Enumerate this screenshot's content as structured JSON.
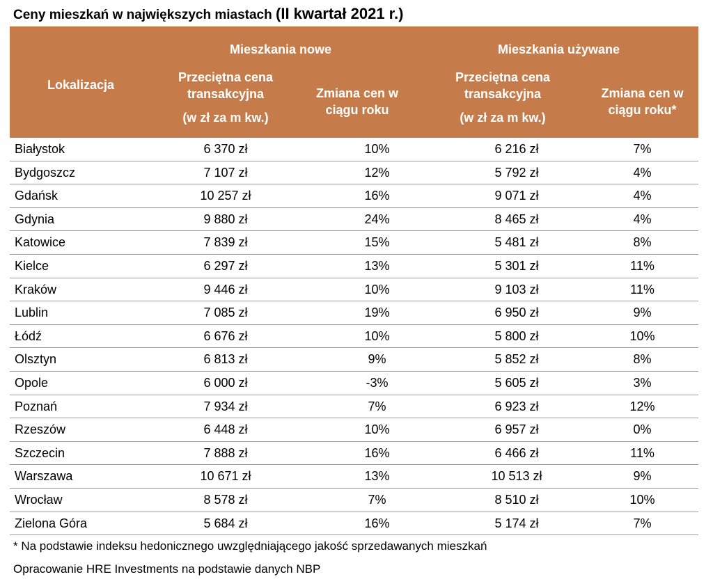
{
  "title": {
    "main": "Ceny mieszkań w największych miastach",
    "period": "(II kwartał 2021 r.)"
  },
  "header": {
    "lokalizacja": "Lokalizacja",
    "new_group": "Mieszkania nowe",
    "used_group": "Mieszkania używane",
    "price_line1": "Przeciętna cena",
    "price_line2": "transakcyjna",
    "price_unit": "(w zł za m kw.)",
    "change_new_line1": "Zmiana cen w",
    "change_new_line2": "ciągu roku",
    "change_used_line1": "Zmiana cen w",
    "change_used_line2": "ciągu roku*"
  },
  "rows": [
    {
      "city": "Białystok",
      "price_new": "6 370 zł",
      "change_new": "10%",
      "price_used": "6 216 zł",
      "change_used": "7%"
    },
    {
      "city": "Bydgoszcz",
      "price_new": "7 107 zł",
      "change_new": "12%",
      "price_used": "5 792 zł",
      "change_used": "4%"
    },
    {
      "city": "Gdańsk",
      "price_new": "10 257 zł",
      "change_new": "16%",
      "price_used": "9 071 zł",
      "change_used": "4%"
    },
    {
      "city": "Gdynia",
      "price_new": "9 880 zł",
      "change_new": "24%",
      "price_used": "8 465 zł",
      "change_used": "4%"
    },
    {
      "city": "Katowice",
      "price_new": "7 839 zł",
      "change_new": "15%",
      "price_used": "5 481 zł",
      "change_used": "8%"
    },
    {
      "city": "Kielce",
      "price_new": "6 297 zł",
      "change_new": "13%",
      "price_used": "5 301 zł",
      "change_used": "11%"
    },
    {
      "city": "Kraków",
      "price_new": "9 446 zł",
      "change_new": "10%",
      "price_used": "9 103 zł",
      "change_used": "11%"
    },
    {
      "city": "Lublin",
      "price_new": "7 085 zł",
      "change_new": "19%",
      "price_used": "6 950 zł",
      "change_used": "9%"
    },
    {
      "city": "Łódź",
      "price_new": "6 676 zł",
      "change_new": "10%",
      "price_used": "5 800 zł",
      "change_used": "10%"
    },
    {
      "city": "Olsztyn",
      "price_new": "6 813 zł",
      "change_new": "9%",
      "price_used": "5 852 zł",
      "change_used": "8%"
    },
    {
      "city": "Opole",
      "price_new": "6 000 zł",
      "change_new": "-3%",
      "price_used": "5 605 zł",
      "change_used": "3%"
    },
    {
      "city": "Poznań",
      "price_new": "7 934 zł",
      "change_new": "7%",
      "price_used": "6 923 zł",
      "change_used": "12%"
    },
    {
      "city": "Rzeszów",
      "price_new": "6 448 zł",
      "change_new": "10%",
      "price_used": "6 957 zł",
      "change_used": "0%"
    },
    {
      "city": "Szczecin",
      "price_new": "7 888 zł",
      "change_new": "16%",
      "price_used": "6 466 zł",
      "change_used": "11%"
    },
    {
      "city": "Warszawa",
      "price_new": "10 671 zł",
      "change_new": "13%",
      "price_used": "10 513 zł",
      "change_used": "9%"
    },
    {
      "city": "Wrocław",
      "price_new": "8 578 zł",
      "change_new": "7%",
      "price_used": "8 510 zł",
      "change_used": "10%"
    },
    {
      "city": "Zielona Góra",
      "price_new": "5 684 zł",
      "change_new": "16%",
      "price_used": "5 174 zł",
      "change_used": "7%"
    }
  ],
  "footnote": "* Na podstawie indeksu hedonicznego uwzględniającego jakość sprzedawanych mieszkań",
  "source": "Opracowanie HRE Investments na podstawie danych NBP",
  "colors": {
    "header_bg": "#c67c4a",
    "header_text": "#ffffff",
    "row_border": "#9b9b9b"
  }
}
